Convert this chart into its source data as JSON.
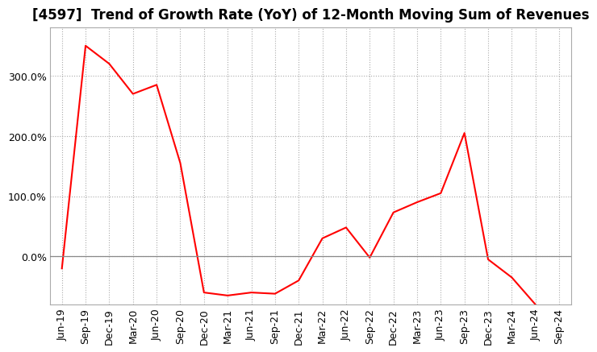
{
  "title": "[4597]  Trend of Growth Rate (YoY) of 12-Month Moving Sum of Revenues",
  "line_color": "#FF0000",
  "background_color": "#FFFFFF",
  "grid_color": "#AAAAAA",
  "x_labels": [
    "Jun-19",
    "Sep-19",
    "Dec-19",
    "Mar-20",
    "Jun-20",
    "Sep-20",
    "Dec-20",
    "Mar-21",
    "Jun-21",
    "Sep-21",
    "Dec-21",
    "Mar-22",
    "Jun-22",
    "Sep-22",
    "Dec-22",
    "Mar-23",
    "Jun-23",
    "Sep-23",
    "Dec-23",
    "Mar-24",
    "Jun-24",
    "Sep-24"
  ],
  "y_values": [
    -20,
    350,
    320,
    270,
    285,
    155,
    -60,
    -65,
    -60,
    -62,
    -40,
    30,
    48,
    -2,
    73,
    90,
    105,
    205,
    -5,
    -35,
    -80,
    null
  ],
  "ylim": [
    -80,
    380
  ],
  "yticks": [
    0,
    100,
    200,
    300
  ],
  "ytick_labels": [
    "0.0%",
    "100.0%",
    "200.0%",
    "300.0%"
  ],
  "title_fontsize": 12,
  "tick_fontsize": 9
}
